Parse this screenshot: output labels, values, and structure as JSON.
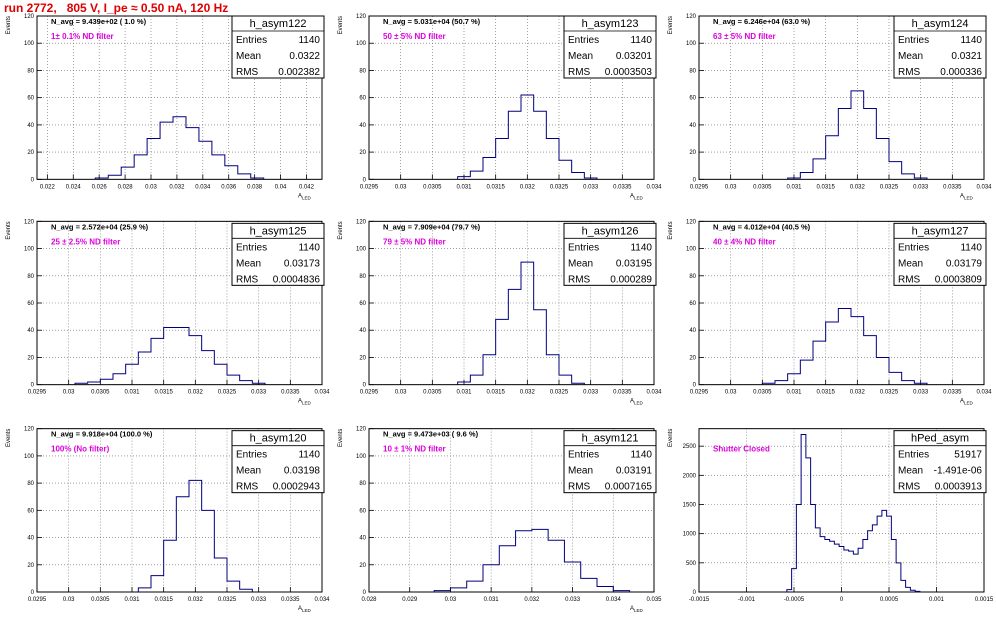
{
  "page": {
    "title": "run 2772,   805 V, I_pe ≈ 0.50 nA, 120 Hz"
  },
  "colors": {
    "title": "#e00000",
    "annotation": "#dd00dd",
    "line": "#00007f",
    "grid": "#000000"
  },
  "chart_data": [
    {
      "type": "histogram",
      "name": "h_asym122",
      "title_line": "N_avg = 9.439e+02 ( 1.0 %)",
      "annotation": "1± 0.1% ND filter",
      "ylabel": "Events",
      "xlabel": "A_LED",
      "grid": true,
      "xlim": [
        0.0212,
        0.0432
      ],
      "ylim": [
        0,
        120
      ],
      "xticks": [
        0.022,
        0.024,
        0.026,
        0.028,
        0.03,
        0.032,
        0.034,
        0.036,
        0.038,
        0.04,
        0.042
      ],
      "xtick_labels": [
        "0.022",
        "0.024",
        "0.026",
        "0.028",
        "0.03",
        "0.032",
        "0.034",
        "0.036",
        "0.038",
        "0.04",
        "0.042"
      ],
      "yticks": [
        0,
        20,
        40,
        60,
        80,
        100,
        120
      ],
      "stats": [
        {
          "label": "Entries",
          "value": "1140"
        },
        {
          "label": "Mean",
          "value": "0.0322"
        },
        {
          "label": "RMS",
          "value": "0.002382"
        }
      ],
      "x": [
        0.0262,
        0.0272,
        0.0282,
        0.0292,
        0.0302,
        0.0312,
        0.0322,
        0.0332,
        0.0342,
        0.0352,
        0.0362,
        0.0372,
        0.0382
      ],
      "values": [
        1,
        3,
        9,
        18,
        30,
        42,
        46,
        38,
        28,
        18,
        10,
        4,
        1
      ]
    },
    {
      "type": "histogram",
      "name": "h_asym123",
      "title_line": "N_avg = 5.031e+04 (50.7 %)",
      "annotation": "50 ± 5% ND filter",
      "ylabel": "Events",
      "xlabel": "A_LED",
      "grid": true,
      "xlim": [
        0.0295,
        0.034
      ],
      "xticks": [
        0.0295,
        0.03,
        0.0305,
        0.031,
        0.0315,
        0.032,
        0.0325,
        0.033,
        0.0335,
        0.034
      ],
      "xtick_labels": [
        "0.0295",
        "0.03",
        "0.0305",
        "0.031",
        "0.0315",
        "0.032",
        "0.0325",
        "0.033",
        "0.0335",
        "0.034"
      ],
      "ylim": [
        0,
        120
      ],
      "yticks": [
        0,
        20,
        40,
        60,
        80,
        100,
        120
      ],
      "stats": [
        {
          "label": "Entries",
          "value": "1140"
        },
        {
          "label": "Mean",
          "value": "0.03201"
        },
        {
          "label": "RMS",
          "value": "0.0003503"
        }
      ],
      "x": [
        0.031,
        0.0312,
        0.0314,
        0.0316,
        0.0318,
        0.032,
        0.0322,
        0.0324,
        0.0326,
        0.0328,
        0.033
      ],
      "values": [
        2,
        6,
        16,
        30,
        50,
        62,
        50,
        30,
        14,
        5,
        1
      ]
    },
    {
      "type": "histogram",
      "name": "h_asym124",
      "title_line": "N_avg = 6.246e+04 (63.0 %)",
      "annotation": "63 ± 5% ND filter",
      "ylabel": "Events",
      "xlabel": "A_LED",
      "grid": true,
      "xlim": [
        0.0295,
        0.034
      ],
      "xticks": [
        0.0295,
        0.03,
        0.0305,
        0.031,
        0.0315,
        0.032,
        0.0325,
        0.033,
        0.0335,
        0.034
      ],
      "xtick_labels": [
        "0.0295",
        "0.03",
        "0.0305",
        "0.031",
        "0.0315",
        "0.032",
        "0.0325",
        "0.033",
        "0.0335",
        "0.034"
      ],
      "ylim": [
        0,
        120
      ],
      "yticks": [
        0,
        20,
        40,
        60,
        80,
        100,
        120
      ],
      "stats": [
        {
          "label": "Entries",
          "value": "1140"
        },
        {
          "label": "Mean",
          "value": "0.0321"
        },
        {
          "label": "RMS",
          "value": "0.000336"
        }
      ],
      "x": [
        0.031,
        0.0312,
        0.0314,
        0.0316,
        0.0318,
        0.032,
        0.0322,
        0.0324,
        0.0326,
        0.0328,
        0.033
      ],
      "values": [
        1,
        5,
        15,
        32,
        52,
        65,
        52,
        30,
        13,
        4,
        1
      ]
    },
    {
      "type": "histogram",
      "name": "h_asym125",
      "title_line": "N_avg = 2.572e+04 (25.9 %)",
      "annotation": "25 ± 2.5% ND filter",
      "ylabel": "Events",
      "xlabel": "A_LED",
      "grid": true,
      "xlim": [
        0.0295,
        0.034
      ],
      "xticks": [
        0.0295,
        0.03,
        0.0305,
        0.031,
        0.0315,
        0.032,
        0.0325,
        0.033,
        0.0335,
        0.034
      ],
      "xtick_labels": [
        "0.0295",
        "0.03",
        "0.0305",
        "0.031",
        "0.0315",
        "0.032",
        "0.0325",
        "0.033",
        "0.0335",
        "0.034"
      ],
      "ylim": [
        0,
        120
      ],
      "yticks": [
        0,
        20,
        40,
        60,
        80,
        100,
        120
      ],
      "stats": [
        {
          "label": "Entries",
          "value": "1140"
        },
        {
          "label": "Mean",
          "value": "0.03173"
        },
        {
          "label": "RMS",
          "value": "0.0004836"
        }
      ],
      "x": [
        0.0302,
        0.0304,
        0.0306,
        0.0308,
        0.031,
        0.0312,
        0.0314,
        0.0316,
        0.0318,
        0.032,
        0.0322,
        0.0324,
        0.0326,
        0.0328,
        0.033
      ],
      "values": [
        1,
        2,
        4,
        8,
        15,
        24,
        34,
        42,
        42,
        36,
        25,
        15,
        7,
        3,
        1
      ]
    },
    {
      "type": "histogram",
      "name": "h_asym126",
      "title_line": "N_avg = 7.909e+04 (79.7 %)",
      "annotation": "79 ± 5% ND filter",
      "ylabel": "Events",
      "xlabel": "A_LED",
      "grid": true,
      "xlim": [
        0.0295,
        0.034
      ],
      "xticks": [
        0.0295,
        0.03,
        0.0305,
        0.031,
        0.0315,
        0.032,
        0.0325,
        0.033,
        0.0335,
        0.034
      ],
      "xtick_labels": [
        "0.0295",
        "0.03",
        "0.0305",
        "0.031",
        "0.0315",
        "0.032",
        "0.0325",
        "0.033",
        "0.0335",
        "0.034"
      ],
      "ylim": [
        0,
        120
      ],
      "yticks": [
        0,
        20,
        40,
        60,
        80,
        100,
        120
      ],
      "stats": [
        {
          "label": "Entries",
          "value": "1140"
        },
        {
          "label": "Mean",
          "value": "0.03195"
        },
        {
          "label": "RMS",
          "value": "0.000289"
        }
      ],
      "x": [
        0.031,
        0.0312,
        0.0314,
        0.0316,
        0.0318,
        0.032,
        0.0322,
        0.0324,
        0.0326,
        0.0328
      ],
      "values": [
        2,
        7,
        22,
        48,
        70,
        90,
        55,
        22,
        7,
        1
      ]
    },
    {
      "type": "histogram",
      "name": "h_asym127",
      "title_line": "N_avg = 4.012e+04 (40.5 %)",
      "annotation": "40 ± 4% ND filter",
      "ylabel": "Events",
      "xlabel": "A_LED",
      "grid": true,
      "xlim": [
        0.0295,
        0.034
      ],
      "xticks": [
        0.0295,
        0.03,
        0.0305,
        0.031,
        0.0315,
        0.032,
        0.0325,
        0.033,
        0.0335,
        0.034
      ],
      "xtick_labels": [
        "0.0295",
        "0.03",
        "0.0305",
        "0.031",
        "0.0315",
        "0.032",
        "0.0325",
        "0.033",
        "0.0335",
        "0.034"
      ],
      "ylim": [
        0,
        120
      ],
      "yticks": [
        0,
        20,
        40,
        60,
        80,
        100,
        120
      ],
      "stats": [
        {
          "label": "Entries",
          "value": "1140"
        },
        {
          "label": "Mean",
          "value": "0.03179"
        },
        {
          "label": "RMS",
          "value": "0.0003809"
        }
      ],
      "x": [
        0.0306,
        0.0308,
        0.031,
        0.0312,
        0.0314,
        0.0316,
        0.0318,
        0.032,
        0.0322,
        0.0324,
        0.0326,
        0.0328,
        0.033
      ],
      "values": [
        1,
        3,
        8,
        18,
        32,
        46,
        56,
        50,
        36,
        20,
        9,
        3,
        1
      ]
    },
    {
      "type": "histogram",
      "name": "h_asym120",
      "title_line": "N_avg = 9.918e+04 (100.0 %)",
      "annotation": "100% (No filter)",
      "ylabel": "Events",
      "xlabel": "A_LED",
      "grid": true,
      "xlim": [
        0.0295,
        0.034
      ],
      "xticks": [
        0.0295,
        0.03,
        0.0305,
        0.031,
        0.0315,
        0.032,
        0.0325,
        0.033,
        0.0335,
        0.034
      ],
      "xtick_labels": [
        "0.0295",
        "0.03",
        "0.0305",
        "0.031",
        "0.0315",
        "0.032",
        "0.0325",
        "0.033",
        "0.0335",
        "0.034"
      ],
      "ylim": [
        0,
        120
      ],
      "yticks": [
        0,
        20,
        40,
        60,
        80,
        100,
        120
      ],
      "stats": [
        {
          "label": "Entries",
          "value": "1140"
        },
        {
          "label": "Mean",
          "value": "0.03198"
        },
        {
          "label": "RMS",
          "value": "0.0002943"
        }
      ],
      "x": [
        0.0312,
        0.0314,
        0.0316,
        0.0318,
        0.032,
        0.0322,
        0.0324,
        0.0326,
        0.0328
      ],
      "values": [
        3,
        12,
        38,
        70,
        82,
        60,
        25,
        8,
        2
      ]
    },
    {
      "type": "histogram",
      "name": "h_asym121",
      "title_line": "N_avg = 9.473e+03 ( 9.6 %)",
      "annotation": "10 ± 1% ND filter",
      "ylabel": "Events",
      "xlabel": "A_LED",
      "grid": true,
      "xlim": [
        0.028,
        0.035
      ],
      "xticks": [
        0.028,
        0.029,
        0.03,
        0.031,
        0.032,
        0.033,
        0.034,
        0.035
      ],
      "xtick_labels": [
        "0.028",
        "0.029",
        "0.03",
        "0.031",
        "0.032",
        "0.033",
        "0.034",
        "0.035"
      ],
      "ylim": [
        0,
        120
      ],
      "yticks": [
        0,
        20,
        40,
        60,
        80,
        100,
        120
      ],
      "stats": [
        {
          "label": "Entries",
          "value": "1140"
        },
        {
          "label": "Mean",
          "value": "0.03191"
        },
        {
          "label": "RMS",
          "value": "0.0007165"
        }
      ],
      "x": [
        0.0298,
        0.0302,
        0.0306,
        0.031,
        0.0314,
        0.0318,
        0.0322,
        0.0326,
        0.033,
        0.0334,
        0.0338,
        0.0342
      ],
      "values": [
        1,
        3,
        8,
        20,
        34,
        45,
        46,
        38,
        22,
        10,
        4,
        1
      ]
    },
    {
      "type": "histogram",
      "name": "hPed_asym",
      "title_line": "",
      "annotation": "Shutter Closed",
      "ylabel": "Events",
      "xlabel": "",
      "grid": true,
      "xlim": [
        -0.0015,
        0.0015
      ],
      "xticks": [
        -0.0015,
        -0.001,
        -0.0005,
        0,
        0.0005,
        0.001,
        0.0015
      ],
      "xtick_labels": [
        "-0.0015",
        "-0.001",
        "-0.0005",
        "0",
        "0.0005",
        "0.001",
        "0.0015"
      ],
      "ylim": [
        0,
        2800
      ],
      "yticks": [
        0,
        500,
        1000,
        1500,
        2000,
        2500
      ],
      "stats": [
        {
          "label": "Entries",
          "value": "51917"
        },
        {
          "label": "Mean",
          "value": "-1.491e-06"
        },
        {
          "label": "RMS",
          "value": "0.0003913"
        }
      ],
      "x": [
        -0.00055,
        -0.0005,
        -0.00045,
        -0.0004,
        -0.00035,
        -0.0003,
        -0.00025,
        -0.0002,
        -0.00015,
        -0.0001,
        -5e-05,
        0,
        5e-05,
        0.0001,
        0.00015,
        0.0002,
        0.00025,
        0.0003,
        0.00035,
        0.0004,
        0.00045,
        0.0005,
        0.00055,
        0.0006,
        0.00065,
        0.0007,
        0.00075,
        0.0008
      ],
      "values": [
        40,
        400,
        1500,
        2700,
        2300,
        1500,
        1100,
        950,
        900,
        870,
        820,
        780,
        720,
        700,
        650,
        750,
        900,
        1050,
        1150,
        1300,
        1400,
        1300,
        900,
        500,
        200,
        80,
        30,
        10
      ]
    }
  ]
}
